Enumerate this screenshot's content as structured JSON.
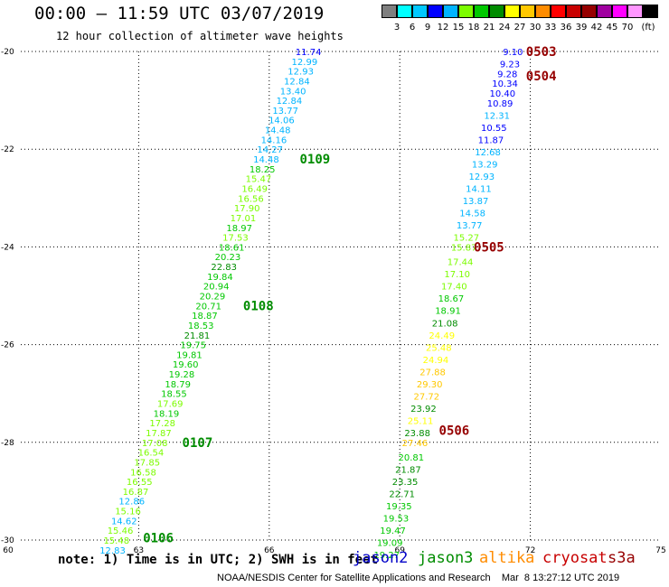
{
  "header": {
    "title": "00:00 — 11:59 UTC 03/07/2019",
    "subtitle": "12 hour collection of altimeter wave heights"
  },
  "colorbar": {
    "colors": [
      "#7f7f7f",
      "#00ffff",
      "#00c8ff",
      "#0000ff",
      "#00b4ff",
      "#7cfc00",
      "#00c800",
      "#008c00",
      "#ffff00",
      "#ffc800",
      "#ff8c00",
      "#ff0000",
      "#c80000",
      "#960000",
      "#a000a0",
      "#ff00ff",
      "#ff96ff",
      "#000000"
    ],
    "labels": [
      "3",
      "6",
      "9",
      "12",
      "15",
      "18",
      "21",
      "24",
      "27",
      "30",
      "33",
      "36",
      "39",
      "42",
      "45",
      "70",
      "(ft)"
    ]
  },
  "map": {
    "x_ticks": [
      "60",
      "63",
      "66",
      "69",
      "72",
      "75"
    ],
    "y_ticks": [
      "-20",
      "-22",
      "-24",
      "-26",
      "-28",
      "-30"
    ]
  },
  "tracks": [
    {
      "satellite": "jason3",
      "passes": [
        {
          "label": "0106",
          "lat": -29.95,
          "lon": 63.1
        },
        {
          "label": "0107",
          "lat": -28.0,
          "lon": 64.0
        },
        {
          "label": "0108",
          "lat": -25.2,
          "lon": 65.4
        },
        {
          "label": "0109",
          "lat": -22.2,
          "lon": 66.7
        }
      ],
      "points": [
        [
          "11.74",
          -20.0
        ],
        [
          "12.99",
          -20.2
        ],
        [
          "12.93",
          -20.4
        ],
        [
          "12.84",
          -20.6
        ],
        [
          "13.40",
          -20.8
        ],
        [
          "12.84",
          -21.0
        ],
        [
          "13.77",
          -21.2
        ],
        [
          "14.06",
          -21.4
        ],
        [
          "14.48",
          -21.6
        ],
        [
          "14.16",
          -21.8
        ],
        [
          "14.27",
          -22.0
        ],
        [
          "14.48",
          -22.2
        ],
        [
          "18.25",
          -22.4
        ],
        [
          "15.47",
          -22.6
        ],
        [
          "16.49",
          -22.8
        ],
        [
          "16.56",
          -23.0
        ],
        [
          "17.90",
          -23.2
        ],
        [
          "17.01",
          -23.4
        ],
        [
          "18.97",
          -23.6
        ],
        [
          "17.53",
          -23.8
        ],
        [
          "18.61",
          -24.0
        ],
        [
          "20.23",
          -24.2
        ],
        [
          "22.83",
          -24.4
        ],
        [
          "19.84",
          -24.6
        ],
        [
          "20.94",
          -24.8
        ],
        [
          "20.29",
          -25.0
        ],
        [
          "20.71",
          -25.2
        ],
        [
          "18.87",
          -25.4
        ],
        [
          "18.53",
          -25.6
        ],
        [
          "21.81",
          -25.8
        ],
        [
          "19.75",
          -26.0
        ],
        [
          "19.81",
          -26.2
        ],
        [
          "19.60",
          -26.4
        ],
        [
          "19.28",
          -26.6
        ],
        [
          "18.79",
          -26.8
        ],
        [
          "18.55",
          -27.0
        ],
        [
          "17.69",
          -27.2
        ],
        [
          "18.19",
          -27.4
        ],
        [
          "17.28",
          -27.6
        ],
        [
          "17.87",
          -27.8
        ],
        [
          "17.08",
          -28.0
        ],
        [
          "16.54",
          -28.2
        ],
        [
          "17.85",
          -28.4
        ],
        [
          "16.58",
          -28.6
        ],
        [
          "16.55",
          -28.8
        ],
        [
          "16.87",
          -29.0
        ],
        [
          "12.86",
          -29.2
        ],
        [
          "15.16",
          -29.4
        ],
        [
          "14.62",
          -29.6
        ],
        [
          "15.46",
          -29.8
        ],
        [
          "15.48",
          -30.0
        ],
        [
          "12.83",
          -30.2
        ]
      ]
    },
    {
      "satellite": "cryosat",
      "passes": [
        {
          "label": "0503",
          "lat": -20.0,
          "lon": 71.9
        },
        {
          "label": "0504",
          "lat": -20.5,
          "lon": 71.9
        },
        {
          "label": "0505",
          "lat": -24.0,
          "lon": 70.7
        },
        {
          "label": "0506",
          "lat": -27.75,
          "lon": 69.9
        }
      ],
      "points": [
        [
          "9.10",
          -20.0
        ],
        [
          "9.23",
          -20.25
        ],
        [
          "9.28",
          -20.45
        ],
        [
          "10.34",
          -20.65
        ],
        [
          "10.40",
          -20.85
        ],
        [
          "10.89",
          -21.05
        ],
        [
          "12.31",
          -21.3
        ],
        [
          "10.55",
          -21.55
        ],
        [
          "11.87",
          -21.8
        ],
        [
          "12.68",
          -22.05
        ],
        [
          "13.29",
          -22.3
        ],
        [
          "12.93",
          -22.55
        ],
        [
          "14.11",
          -22.8
        ],
        [
          "13.87",
          -23.05
        ],
        [
          "14.58",
          -23.3
        ],
        [
          "13.77",
          -23.55
        ],
        [
          "15.27",
          -23.8
        ],
        [
          "15.87",
          -24.0
        ],
        [
          "17.44",
          -24.3
        ],
        [
          "17.10",
          -24.55
        ],
        [
          "17.40",
          -24.8
        ],
        [
          "18.67",
          -25.05
        ],
        [
          "18.91",
          -25.3
        ],
        [
          "21.08",
          -25.55
        ],
        [
          "24.49",
          -25.8
        ],
        [
          "25.48",
          -26.05
        ],
        [
          "24.94",
          -26.3
        ],
        [
          "27.88",
          -26.55
        ],
        [
          "29.30",
          -26.8
        ],
        [
          "27.72",
          -27.05
        ],
        [
          "23.92",
          -27.3
        ],
        [
          "25.11",
          -27.55
        ],
        [
          "23.88",
          -27.8
        ],
        [
          "27.46",
          -28.0
        ],
        [
          "20.81",
          -28.3
        ],
        [
          "21.87",
          -28.55
        ],
        [
          "23.35",
          -28.8
        ],
        [
          "22.71",
          -29.05
        ],
        [
          "19.35",
          -29.3
        ],
        [
          "19.53",
          -29.55
        ],
        [
          "19.47",
          -29.8
        ],
        [
          "19.09",
          -30.05
        ],
        [
          "19.27",
          -30.3
        ]
      ]
    }
  ],
  "footer": {
    "note": "note: 1) Time is in UTC; 2) SWH is in feet",
    "legend": [
      {
        "name": "jason2",
        "color": "#0000c8"
      },
      {
        "name": "jason3",
        "color": "#008c00"
      },
      {
        "name": "altika",
        "color": "#ff8c00"
      },
      {
        "name": "cryosat",
        "color": "#c80000"
      },
      {
        "name": "s3a",
        "color": "#960000"
      }
    ],
    "credit": "NOAA/NESDIS Center for Satellite Applications and Research    Mar  8 13:27:12 UTC 2019"
  }
}
